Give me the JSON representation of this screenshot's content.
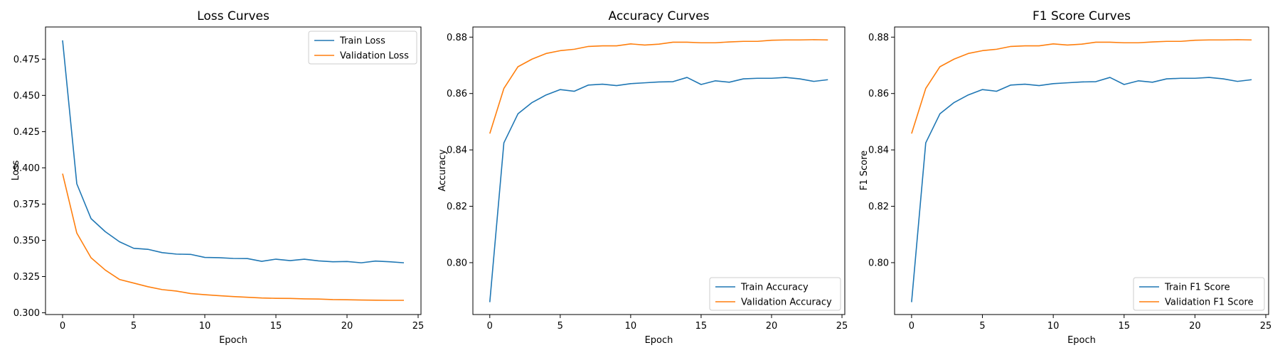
{
  "colors": {
    "train": "#1f77b4",
    "validation": "#ff7f0e"
  },
  "chart_data": [
    {
      "type": "line",
      "title": "Loss Curves",
      "xlabel": "Epoch",
      "ylabel": "Loss",
      "xlim": [
        -1.2,
        25.2
      ],
      "ylim": [
        0.2988,
        0.4972
      ],
      "xticks": [
        0,
        5,
        10,
        15,
        20,
        25
      ],
      "yticks": [
        0.3,
        0.325,
        0.35,
        0.375,
        0.4,
        0.425,
        0.45,
        0.475
      ],
      "ytick_labels": [
        "0.300",
        "0.325",
        "0.350",
        "0.375",
        "0.400",
        "0.425",
        "0.450",
        "0.475"
      ],
      "legend_position": "upper right",
      "x": [
        0,
        1,
        2,
        3,
        4,
        5,
        6,
        7,
        8,
        9,
        10,
        11,
        12,
        13,
        14,
        15,
        16,
        17,
        18,
        19,
        20,
        21,
        22,
        23,
        24
      ],
      "series": [
        {
          "name": "Train Loss",
          "color_key": "train",
          "values": [
            0.488,
            0.389,
            0.365,
            0.356,
            0.349,
            0.3445,
            0.3438,
            0.3415,
            0.3405,
            0.3403,
            0.3382,
            0.338,
            0.3375,
            0.3374,
            0.3355,
            0.337,
            0.336,
            0.337,
            0.3358,
            0.3352,
            0.3354,
            0.3345,
            0.3357,
            0.3352,
            0.3345
          ]
        },
        {
          "name": "Validation Loss",
          "color_key": "validation",
          "values": [
            0.396,
            0.355,
            0.338,
            0.3295,
            0.323,
            0.3205,
            0.318,
            0.316,
            0.315,
            0.3133,
            0.3125,
            0.3118,
            0.3112,
            0.3107,
            0.3102,
            0.31,
            0.3099,
            0.3096,
            0.3095,
            0.3091,
            0.309,
            0.3088,
            0.3087,
            0.3086,
            0.3086
          ]
        }
      ]
    },
    {
      "type": "line",
      "title": "Accuracy Curves",
      "xlabel": "Epoch",
      "ylabel": "Accuracy",
      "xlim": [
        -1.2,
        25.2
      ],
      "ylim": [
        0.7816,
        0.8836
      ],
      "xticks": [
        0,
        5,
        10,
        15,
        20,
        25
      ],
      "yticks": [
        0.8,
        0.82,
        0.84,
        0.86,
        0.88
      ],
      "ytick_labels": [
        "0.80",
        "0.82",
        "0.84",
        "0.86",
        "0.88"
      ],
      "legend_position": "lower right",
      "x": [
        0,
        1,
        2,
        3,
        4,
        5,
        6,
        7,
        8,
        9,
        10,
        11,
        12,
        13,
        14,
        15,
        16,
        17,
        18,
        19,
        20,
        21,
        22,
        23,
        24
      ],
      "series": [
        {
          "name": "Train Accuracy",
          "color_key": "train",
          "values": [
            0.786,
            0.8425,
            0.8528,
            0.8568,
            0.8595,
            0.8614,
            0.8608,
            0.863,
            0.8633,
            0.8628,
            0.8635,
            0.8638,
            0.8641,
            0.8642,
            0.8657,
            0.8632,
            0.8645,
            0.864,
            0.8652,
            0.8654,
            0.8654,
            0.8657,
            0.8652,
            0.8643,
            0.8649
          ]
        },
        {
          "name": "Validation Accuracy",
          "color_key": "validation",
          "values": [
            0.8458,
            0.8618,
            0.8695,
            0.8722,
            0.8742,
            0.8752,
            0.8757,
            0.8767,
            0.8769,
            0.8769,
            0.8776,
            0.8772,
            0.8775,
            0.8782,
            0.8782,
            0.878,
            0.878,
            0.8783,
            0.8785,
            0.8785,
            0.8789,
            0.879,
            0.879,
            0.8791,
            0.879
          ]
        }
      ]
    },
    {
      "type": "line",
      "title": "F1 Score Curves",
      "xlabel": "Epoch",
      "ylabel": "F1 Score",
      "xlim": [
        -1.2,
        25.2
      ],
      "ylim": [
        0.7816,
        0.8836
      ],
      "xticks": [
        0,
        5,
        10,
        15,
        20,
        25
      ],
      "yticks": [
        0.8,
        0.82,
        0.84,
        0.86,
        0.88
      ],
      "ytick_labels": [
        "0.80",
        "0.82",
        "0.84",
        "0.86",
        "0.88"
      ],
      "legend_position": "lower right",
      "x": [
        0,
        1,
        2,
        3,
        4,
        5,
        6,
        7,
        8,
        9,
        10,
        11,
        12,
        13,
        14,
        15,
        16,
        17,
        18,
        19,
        20,
        21,
        22,
        23,
        24
      ],
      "series": [
        {
          "name": "Train F1 Score",
          "color_key": "train",
          "values": [
            0.786,
            0.8425,
            0.8528,
            0.8568,
            0.8595,
            0.8614,
            0.8608,
            0.863,
            0.8633,
            0.8628,
            0.8635,
            0.8638,
            0.8641,
            0.8642,
            0.8657,
            0.8632,
            0.8645,
            0.864,
            0.8652,
            0.8654,
            0.8654,
            0.8657,
            0.8652,
            0.8643,
            0.8649
          ]
        },
        {
          "name": "Validation F1 Score",
          "color_key": "validation",
          "values": [
            0.8458,
            0.8618,
            0.8695,
            0.8722,
            0.8742,
            0.8752,
            0.8757,
            0.8767,
            0.8769,
            0.8769,
            0.8776,
            0.8772,
            0.8775,
            0.8782,
            0.8782,
            0.878,
            0.878,
            0.8783,
            0.8785,
            0.8785,
            0.8789,
            0.879,
            0.879,
            0.8791,
            0.879
          ]
        }
      ]
    }
  ]
}
